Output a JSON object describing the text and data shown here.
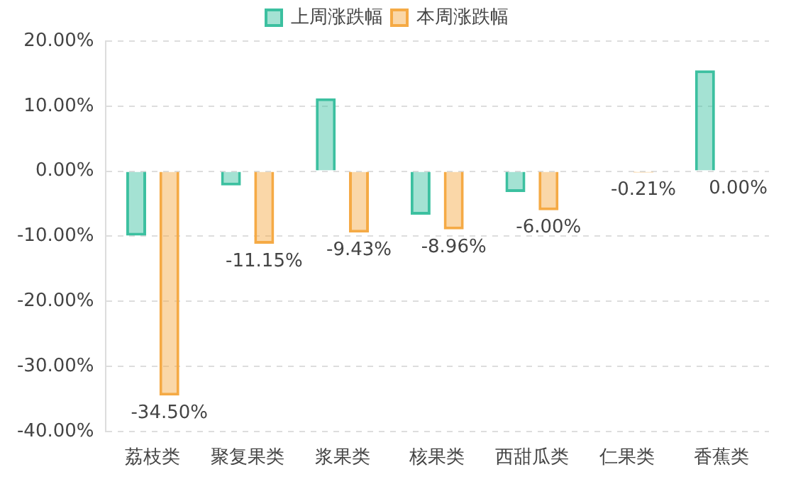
{
  "chart_data": {
    "type": "bar",
    "categories": [
      "荔枝类",
      "聚复果类",
      "浆果类",
      "核果类",
      "西甜瓜类",
      "仁果类",
      "香蕉类"
    ],
    "series": [
      {
        "name": "上周涨跌幅",
        "color": "#3cc0a0",
        "values": [
          -9.9,
          -2.2,
          11.2,
          -6.7,
          -3.2,
          null,
          15.5
        ]
      },
      {
        "name": "本周涨跌幅",
        "color": "#f5aa45",
        "values": [
          -34.5,
          -11.15,
          -9.43,
          -8.96,
          -6.0,
          -0.21,
          0.0
        ],
        "value_labels": [
          "-34.50%",
          "-11.15%",
          "-9.43%",
          "-8.96%",
          "-6.00%",
          "-0.21%",
          "0.00%"
        ]
      }
    ],
    "ylim": [
      -40,
      20
    ],
    "yticks": [
      {
        "value": 20,
        "label": "20.00%"
      },
      {
        "value": 10,
        "label": "10.00%"
      },
      {
        "value": 0,
        "label": "0.00%"
      },
      {
        "value": -10,
        "label": "-10.00%"
      },
      {
        "value": -20,
        "label": "-20.00%"
      },
      {
        "value": -30,
        "label": "-30.00%"
      },
      {
        "value": -40,
        "label": "-40.00%"
      }
    ],
    "grid": "y",
    "legend": "top"
  }
}
